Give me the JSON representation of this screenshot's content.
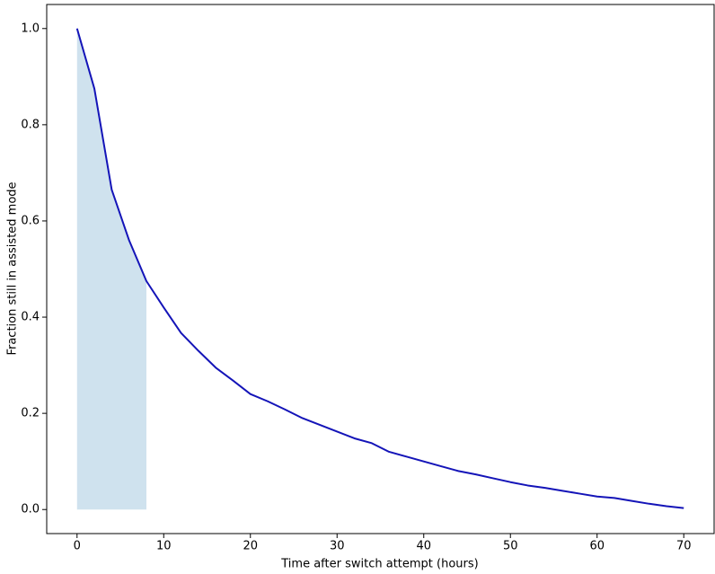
{
  "chart_data": {
    "type": "line",
    "xlabel": "Time after switch attempt (hours)",
    "ylabel": "Fraction still in assisted mode",
    "x": [
      0,
      2,
      4,
      6,
      8,
      10,
      12,
      14,
      16,
      18,
      20,
      22,
      24,
      26,
      28,
      30,
      32,
      34,
      36,
      38,
      40,
      42,
      44,
      46,
      48,
      50,
      52,
      54,
      56,
      58,
      60,
      62,
      64,
      66,
      68,
      70
    ],
    "series": [
      {
        "color": "#1414b8",
        "values": [
          1.0,
          0.875,
          0.665,
          0.56,
          0.475,
          0.42,
          0.367,
          0.33,
          0.295,
          0.268,
          0.24,
          0.225,
          0.208,
          0.19,
          0.176,
          0.162,
          0.148,
          0.138,
          0.12,
          0.11,
          0.1,
          0.09,
          0.08,
          0.073,
          0.065,
          0.057,
          0.05,
          0.045,
          0.039,
          0.033,
          0.027,
          0.024,
          0.018,
          0.012,
          0.007,
          0.003
        ]
      }
    ],
    "shade": {
      "from": 0,
      "to": 8,
      "color": "#cfe2ee"
    },
    "xlim": [
      -3.5,
      73.5
    ],
    "xticks": [
      0,
      10,
      20,
      30,
      40,
      50,
      60,
      70
    ],
    "ylim": [
      -0.05,
      1.05
    ],
    "yticks": [
      {
        "value": 0,
        "label": "0.0"
      },
      {
        "value": 0.2,
        "label": "0.2"
      },
      {
        "value": 0.4,
        "label": "0.4"
      },
      {
        "value": 0.6,
        "label": "0.6"
      },
      {
        "value": 0.8,
        "label": "0.8"
      },
      {
        "value": 1.0,
        "label": "1.0"
      }
    ],
    "grid": false
  }
}
